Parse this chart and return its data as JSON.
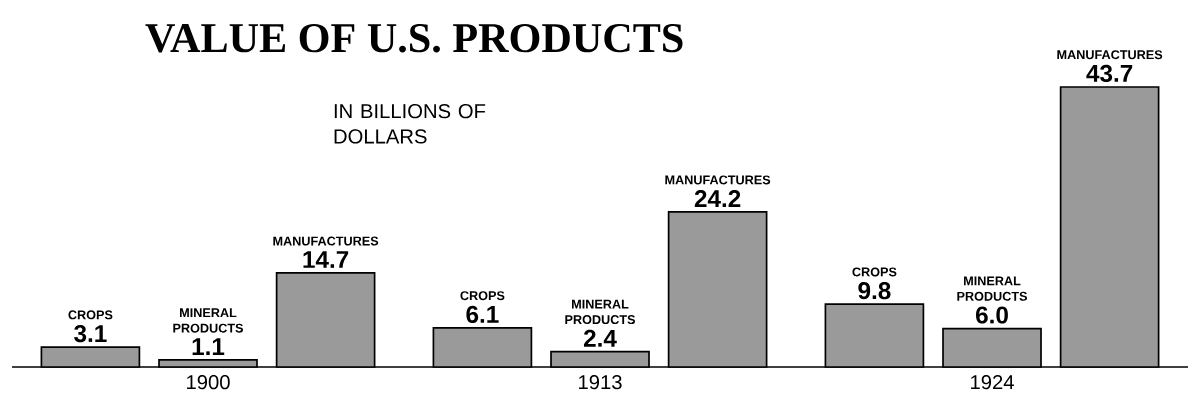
{
  "chart_data": {
    "type": "bar",
    "title": "VALUE OF U.S. PRODUCTS",
    "subtitle": "IN BILLIONS OF DOLLARS",
    "categories": [
      "1900",
      "1913",
      "1924"
    ],
    "series": [
      {
        "name": "CROPS",
        "color": "#9a9a9a",
        "values": [
          3.1,
          6.1,
          9.8
        ],
        "value_labels": [
          "3.1",
          "6.1",
          "9.8"
        ]
      },
      {
        "name": "MINERAL PRODUCTS",
        "color": "#9a9a9a",
        "values": [
          1.1,
          2.4,
          6.0
        ],
        "value_labels": [
          "1.1",
          "2.4",
          "6.0"
        ]
      },
      {
        "name": "MANUFACTURES",
        "color": "#9a9a9a",
        "values": [
          14.7,
          24.2,
          43.7
        ],
        "value_labels": [
          "14.7",
          "24.2",
          "43.7"
        ]
      }
    ]
  }
}
